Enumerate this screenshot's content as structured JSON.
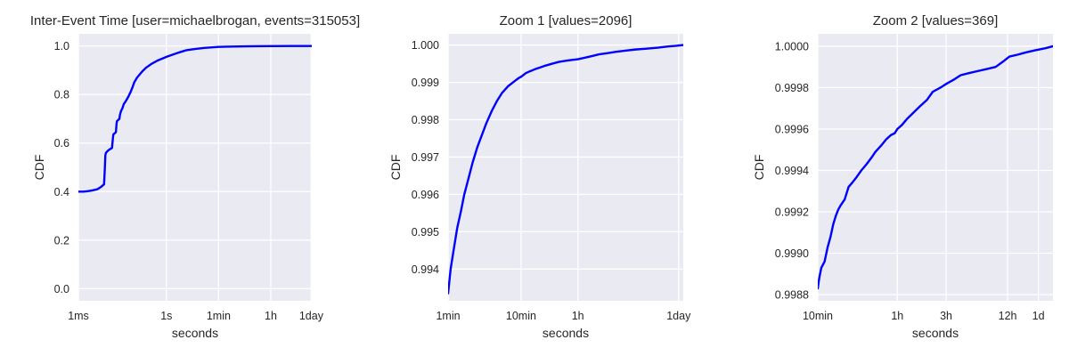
{
  "chart_data": [
    {
      "type": "line",
      "title": "Inter-Event Time [user=michaelbrogan, events=315053]",
      "xlabel": "seconds",
      "ylabel": "CDF",
      "x_scale": "log",
      "x_unit": "seconds",
      "xlim": [
        0.001,
        90000
      ],
      "ylim": [
        -0.05,
        1.05
      ],
      "grid": true,
      "line_color": "#0000ff",
      "background_color": "#eaeaf2",
      "xticks": [
        {
          "value": 0.001,
          "label": "1ms"
        },
        {
          "value": 1,
          "label": "1s"
        },
        {
          "value": 60,
          "label": "1min"
        },
        {
          "value": 3600,
          "label": "1h"
        },
        {
          "value": 86400,
          "label": "1day"
        }
      ],
      "yticks": [
        {
          "value": 0.0,
          "label": "0.0"
        },
        {
          "value": 0.2,
          "label": "0.2"
        },
        {
          "value": 0.4,
          "label": "0.4"
        },
        {
          "value": 0.6,
          "label": "0.6"
        },
        {
          "value": 0.8,
          "label": "0.8"
        },
        {
          "value": 1.0,
          "label": "1.0"
        }
      ],
      "series": [
        {
          "x": [
            0.001,
            0.0015,
            0.0022,
            0.003,
            0.0045,
            0.006,
            0.0075,
            0.008,
            0.0083,
            0.0087,
            0.0095,
            0.0105,
            0.012,
            0.014,
            0.015,
            0.0155,
            0.019,
            0.02,
            0.0205,
            0.025,
            0.026,
            0.028,
            0.032,
            0.035,
            0.04,
            0.05,
            0.06,
            0.07,
            0.08,
            0.1,
            0.15,
            0.2,
            0.3,
            0.5,
            0.8,
            1,
            2,
            3,
            5,
            10,
            20,
            60,
            120,
            300,
            1000,
            3600,
            20000,
            90000
          ],
          "y": [
            0.4,
            0.4,
            0.402,
            0.405,
            0.41,
            0.42,
            0.43,
            0.5,
            0.55,
            0.56,
            0.565,
            0.57,
            0.575,
            0.58,
            0.62,
            0.635,
            0.645,
            0.68,
            0.69,
            0.7,
            0.715,
            0.73,
            0.745,
            0.76,
            0.77,
            0.79,
            0.81,
            0.83,
            0.85,
            0.87,
            0.895,
            0.91,
            0.925,
            0.94,
            0.95,
            0.955,
            0.968,
            0.975,
            0.983,
            0.988,
            0.992,
            0.996,
            0.997,
            0.998,
            0.999,
            0.9995,
            0.9998,
            1.0
          ]
        }
      ]
    },
    {
      "type": "line",
      "title": "Zoom 1 [values=2096]",
      "xlabel": "seconds",
      "ylabel": "CDF",
      "x_scale": "log",
      "x_unit": "seconds",
      "xlim": [
        60,
        100000
      ],
      "ylim": [
        0.99315,
        1.0003
      ],
      "grid": true,
      "line_color": "#0000ff",
      "background_color": "#eaeaf2",
      "xticks": [
        {
          "value": 60,
          "label": "1min"
        },
        {
          "value": 600,
          "label": "10min"
        },
        {
          "value": 3600,
          "label": "1h"
        },
        {
          "value": 86400,
          "label": "1day"
        }
      ],
      "yticks": [
        {
          "value": 0.994,
          "label": "0.994"
        },
        {
          "value": 0.995,
          "label": "0.995"
        },
        {
          "value": 0.996,
          "label": "0.996"
        },
        {
          "value": 0.997,
          "label": "0.997"
        },
        {
          "value": 0.998,
          "label": "0.998"
        },
        {
          "value": 0.999,
          "label": "0.999"
        },
        {
          "value": 1.0,
          "label": "1.000"
        }
      ],
      "series": [
        {
          "x": [
            60,
            65,
            72,
            80,
            90,
            100,
            115,
            130,
            150,
            175,
            200,
            240,
            280,
            330,
            400,
            480,
            560,
            600,
            700,
            800,
            950,
            1100,
            1300,
            1600,
            2000,
            2500,
            3000,
            3600,
            4500,
            5500,
            7000,
            9000,
            12000,
            16000,
            22000,
            30000,
            45000,
            60000,
            80000,
            100000
          ],
          "y": [
            0.99335,
            0.994,
            0.99455,
            0.9951,
            0.99555,
            0.996,
            0.99645,
            0.99685,
            0.99725,
            0.9976,
            0.9979,
            0.99825,
            0.9985,
            0.99872,
            0.9989,
            0.99902,
            0.99912,
            0.99915,
            0.99925,
            0.9993,
            0.99936,
            0.9994,
            0.99945,
            0.9995,
            0.99955,
            0.99958,
            0.9996,
            0.99962,
            0.99966,
            0.9997,
            0.99975,
            0.99978,
            0.99982,
            0.99985,
            0.99988,
            0.9999,
            0.99993,
            0.99996,
            0.99998,
            1.0
          ]
        }
      ]
    },
    {
      "type": "line",
      "title": "Zoom 2 [values=369]",
      "xlabel": "seconds",
      "ylabel": "CDF",
      "x_scale": "log",
      "x_unit": "seconds",
      "xlim": [
        600,
        120000
      ],
      "ylim": [
        0.99877,
        1.00006
      ],
      "grid": true,
      "line_color": "#0000ff",
      "background_color": "#eaeaf2",
      "xticks": [
        {
          "value": 600,
          "label": "10min"
        },
        {
          "value": 3600,
          "label": "1h"
        },
        {
          "value": 10800,
          "label": "3h"
        },
        {
          "value": 43200,
          "label": "12h"
        },
        {
          "value": 86400,
          "label": "1d"
        }
      ],
      "yticks": [
        {
          "value": 0.9988,
          "label": "0.9988"
        },
        {
          "value": 0.999,
          "label": "0.9990"
        },
        {
          "value": 0.9992,
          "label": "0.9992"
        },
        {
          "value": 0.9994,
          "label": "0.9994"
        },
        {
          "value": 0.9996,
          "label": "0.9996"
        },
        {
          "value": 0.9998,
          "label": "0.9998"
        },
        {
          "value": 1.0,
          "label": "1.0000"
        }
      ],
      "series": [
        {
          "x": [
            600,
            620,
            650,
            700,
            750,
            800,
            850,
            900,
            950,
            1000,
            1100,
            1200,
            1300,
            1450,
            1600,
            1800,
            2000,
            2200,
            2500,
            2800,
            3100,
            3400,
            3600,
            4000,
            4500,
            5200,
            6000,
            7000,
            8000,
            9500,
            11000,
            13000,
            15000,
            18000,
            22000,
            27000,
            33000,
            40000,
            45000,
            55000,
            65000,
            80000,
            100000,
            120000
          ],
          "y": [
            0.99883,
            0.99888,
            0.99893,
            0.99896,
            0.99903,
            0.99908,
            0.99914,
            0.99918,
            0.99921,
            0.99923,
            0.99926,
            0.99932,
            0.99934,
            0.99937,
            0.9994,
            0.99943,
            0.99946,
            0.99949,
            0.99952,
            0.99955,
            0.99957,
            0.99958,
            0.9996,
            0.99962,
            0.99965,
            0.99968,
            0.99971,
            0.99974,
            0.99978,
            0.9998,
            0.99982,
            0.99984,
            0.99986,
            0.99987,
            0.99988,
            0.99989,
            0.9999,
            0.99993,
            0.99995,
            0.99996,
            0.99997,
            0.99998,
            0.99999,
            1.0
          ]
        }
      ]
    }
  ]
}
